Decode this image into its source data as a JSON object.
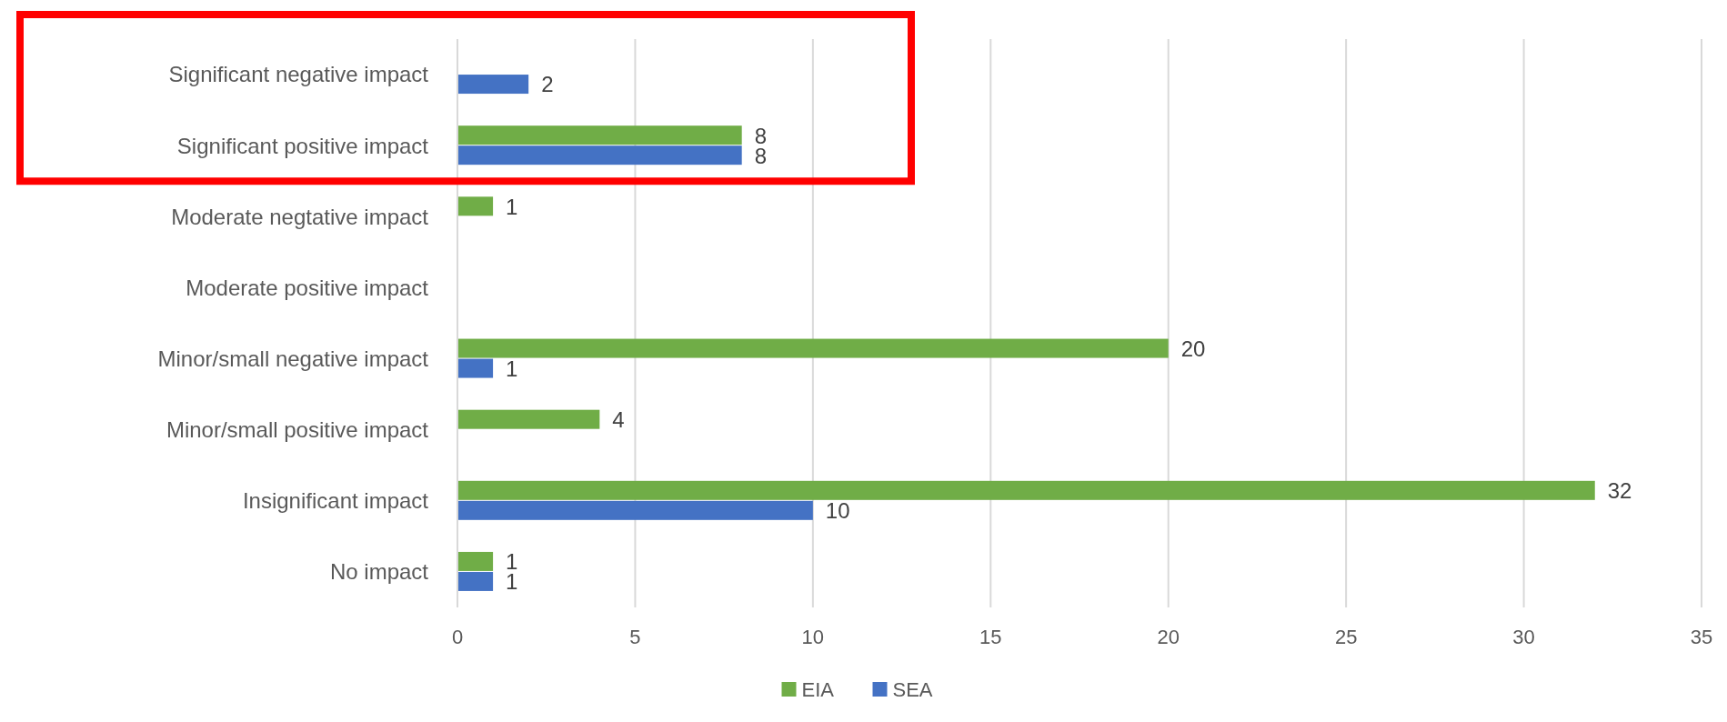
{
  "chart_data": {
    "type": "bar",
    "orientation": "horizontal",
    "categories": [
      "Significant negative impact",
      "Significant positive impact",
      "Moderate negtative impact",
      "Moderate positive impact",
      "Minor/small negative impact",
      "Minor/small positive impact",
      "Insignificant impact",
      "No impact"
    ],
    "series": [
      {
        "name": "EIA",
        "color": "#70ad47",
        "values": [
          null,
          8,
          1,
          null,
          20,
          4,
          32,
          1
        ]
      },
      {
        "name": "SEA",
        "color": "#4472c4",
        "values": [
          2,
          8,
          null,
          null,
          1,
          null,
          10,
          1
        ]
      }
    ],
    "xlim": [
      0,
      35
    ],
    "xticks": [
      0,
      5,
      10,
      15,
      20,
      25,
      30,
      35
    ],
    "grid": "x",
    "legend": "bottom",
    "data_labels": true
  }
}
